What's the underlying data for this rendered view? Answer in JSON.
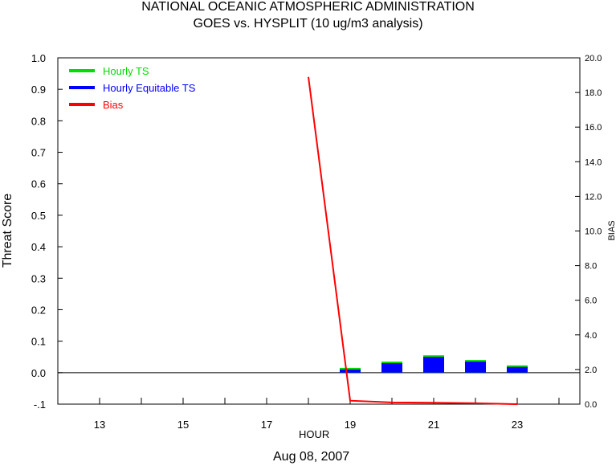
{
  "chart_data": {
    "type": "bar",
    "title": "NATIONAL OCEANIC ATMOSPHERIC ADMINISTRATION",
    "subtitle": "GOES vs. HYSPLIT  (10 ug/m3 analysis)",
    "xlabel": "HOUR",
    "ylabel": "Threat Score",
    "y2label": "BIAS",
    "date_label": "Aug 08, 2007",
    "xlim": [
      12,
      24.5
    ],
    "ylim": [
      -0.1,
      1.0
    ],
    "y2lim": [
      0.0,
      20.0
    ],
    "x_tick_labels": [
      "13",
      "15",
      "17",
      "19",
      "21",
      "23"
    ],
    "y_tick_labels": [
      "-.1",
      "0.0",
      "0.1",
      "0.2",
      "0.3",
      "0.4",
      "0.5",
      "0.6",
      "0.7",
      "0.8",
      "0.9",
      "1.0"
    ],
    "y2_tick_labels": [
      "0.0",
      "2.0",
      "4.0",
      "6.0",
      "8.0",
      "10.0",
      "12.0",
      "14.0",
      "16.0",
      "18.0",
      "20.0"
    ],
    "legend_position": "top-left",
    "series": [
      {
        "name": "Hourly TS",
        "kind": "bar",
        "axis": "left",
        "color": "#00dd00",
        "x": [
          19,
          20,
          21,
          22,
          23
        ],
        "values": [
          0.01,
          0.03,
          0.05,
          0.035,
          0.018
        ]
      },
      {
        "name": "Hourly Equitable TS",
        "kind": "bar",
        "axis": "left",
        "color": "#0000ff",
        "x": [
          19,
          20,
          21,
          22,
          23
        ],
        "values": [
          0.01,
          0.03,
          0.05,
          0.035,
          0.018
        ]
      },
      {
        "name": "Bias",
        "kind": "line",
        "axis": "right",
        "color": "#ff0000",
        "x": [
          18,
          19,
          20,
          21,
          22,
          23
        ],
        "values": [
          18.9,
          0.2,
          0.1,
          0.08,
          0.05,
          0.0
        ]
      }
    ]
  }
}
